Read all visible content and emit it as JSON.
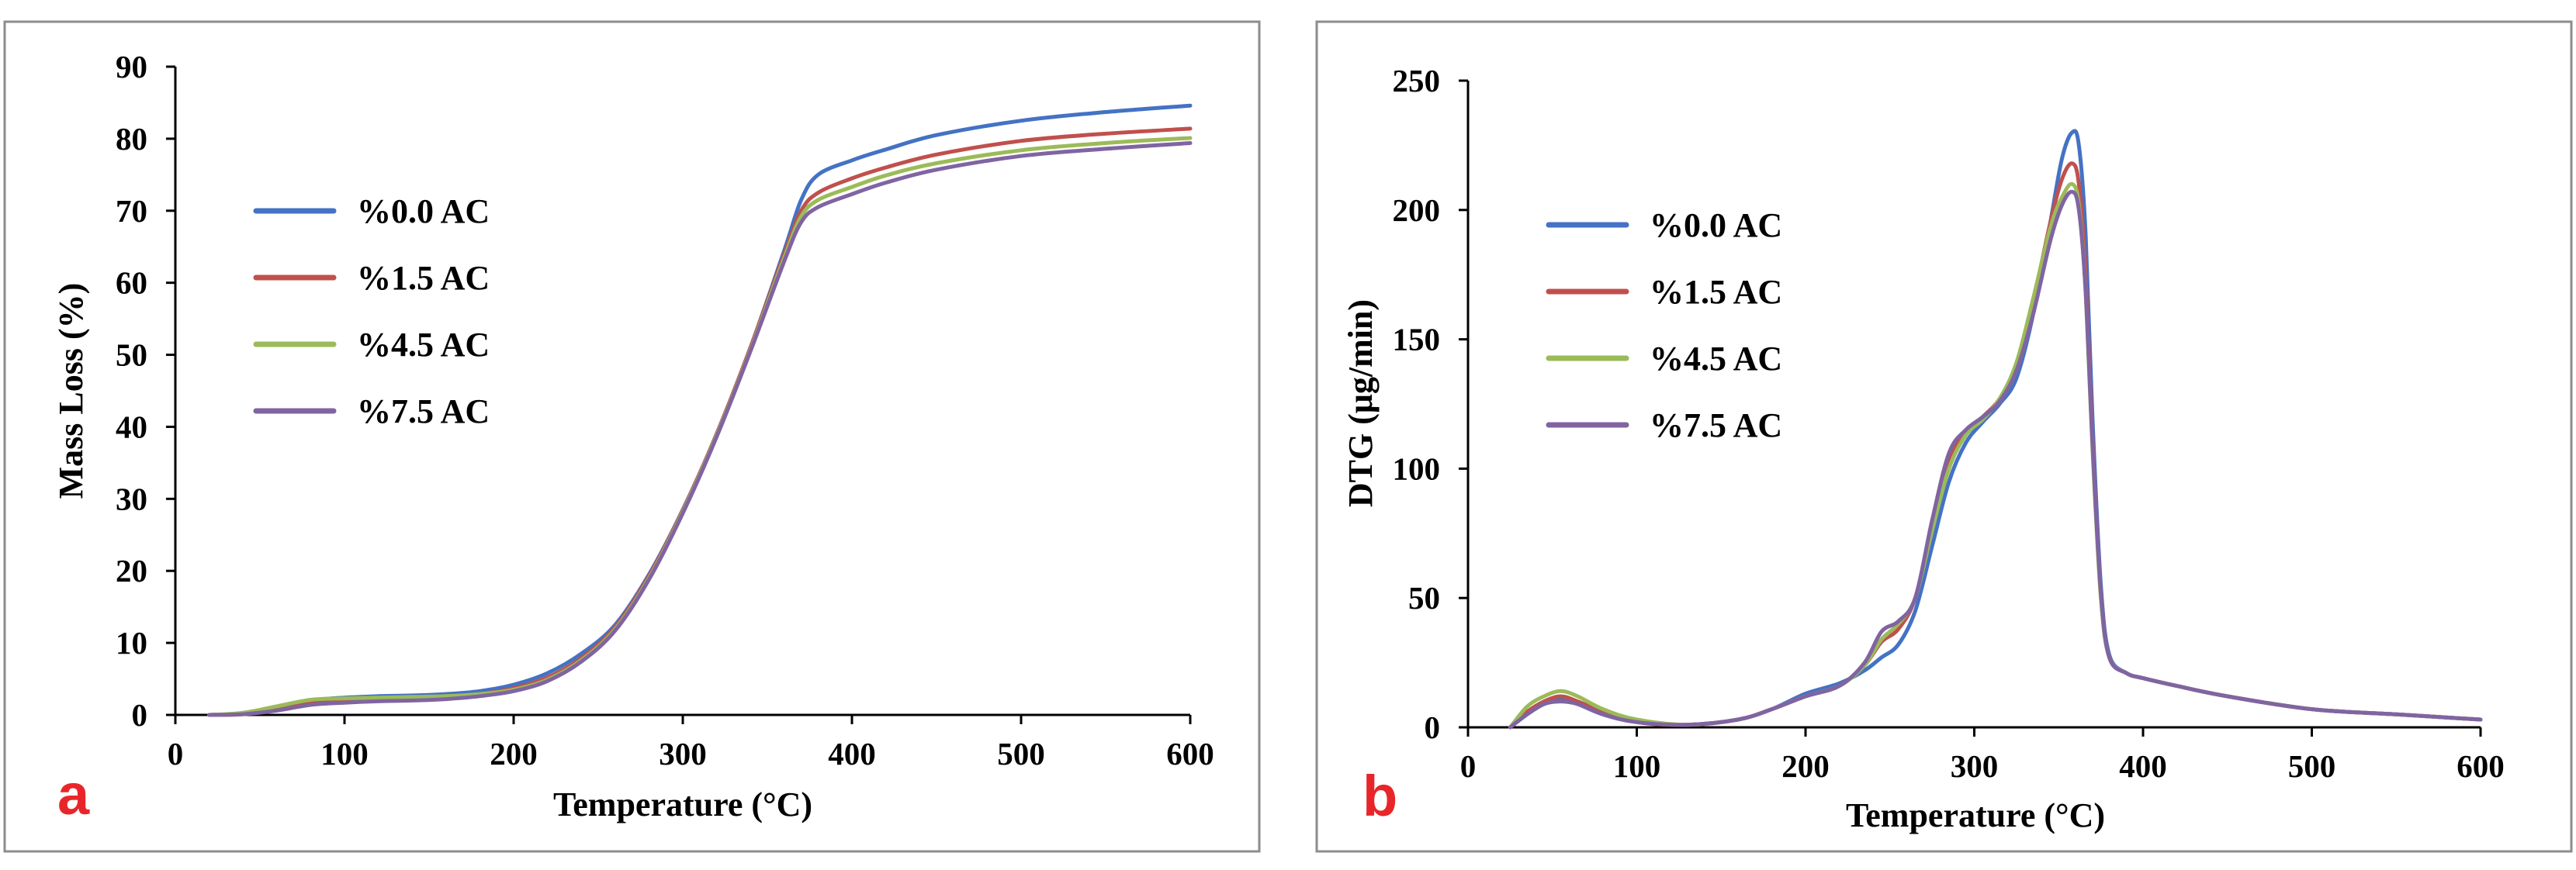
{
  "panel_labels": [
    "a",
    "b"
  ],
  "colors": {
    "label": "#e8262a",
    "frame": "#8c8c8c",
    "axis": "#000000"
  },
  "chart_data": [
    {
      "type": "line",
      "panel": "a",
      "title": "",
      "xlabel": "Temperature (°C)",
      "ylabel": "Mass Loss (%)",
      "xlim": [
        0,
        600
      ],
      "ylim": [
        0,
        90
      ],
      "xticks": [
        0,
        100,
        200,
        300,
        400,
        500,
        600
      ],
      "yticks": [
        0,
        10,
        20,
        30,
        40,
        50,
        60,
        70,
        80,
        90
      ],
      "grid": false,
      "legend_position": "upper-left",
      "series": [
        {
          "name": "%0.0 AC",
          "color": "#4472c4",
          "x": [
            20,
            40,
            60,
            80,
            100,
            120,
            140,
            160,
            180,
            200,
            220,
            240,
            260,
            280,
            300,
            320,
            340,
            360,
            370,
            380,
            400,
            420,
            450,
            500,
            550,
            600
          ],
          "y": [
            0,
            0.2,
            1.0,
            2.0,
            2.4,
            2.6,
            2.7,
            2.9,
            3.3,
            4.2,
            5.8,
            8.5,
            12.5,
            19.5,
            28.5,
            39.0,
            51.0,
            64.5,
            71.5,
            75.0,
            77.0,
            78.5,
            80.5,
            82.5,
            83.7,
            84.6
          ]
        },
        {
          "name": "%1.5 AC",
          "color": "#c0504d",
          "x": [
            20,
            40,
            60,
            80,
            100,
            120,
            140,
            160,
            180,
            200,
            220,
            240,
            260,
            280,
            300,
            320,
            340,
            360,
            370,
            380,
            400,
            420,
            450,
            500,
            550,
            600
          ],
          "y": [
            0,
            0.1,
            0.7,
            1.6,
            2.0,
            2.2,
            2.3,
            2.5,
            2.9,
            3.7,
            5.2,
            7.9,
            12.2,
            19.3,
            28.4,
            39.0,
            51.0,
            64.0,
            70.0,
            72.5,
            74.5,
            76.0,
            77.8,
            79.7,
            80.7,
            81.4
          ]
        },
        {
          "name": "%4.5 AC",
          "color": "#9bbb59",
          "x": [
            20,
            40,
            60,
            80,
            100,
            120,
            140,
            160,
            180,
            200,
            220,
            240,
            260,
            280,
            300,
            320,
            340,
            360,
            370,
            380,
            400,
            420,
            450,
            500,
            550,
            600
          ],
          "y": [
            0,
            0.3,
            1.2,
            2.1,
            2.3,
            2.4,
            2.5,
            2.6,
            2.9,
            3.5,
            4.9,
            7.6,
            11.9,
            19.0,
            28.2,
            38.8,
            50.7,
            63.5,
            69.2,
            71.5,
            73.3,
            74.9,
            76.6,
            78.4,
            79.4,
            80.1
          ]
        },
        {
          "name": "%7.5 AC",
          "color": "#8064a2",
          "x": [
            20,
            40,
            60,
            80,
            100,
            120,
            140,
            160,
            180,
            200,
            220,
            240,
            260,
            280,
            300,
            320,
            340,
            360,
            370,
            380,
            400,
            420,
            450,
            500,
            550,
            600
          ],
          "y": [
            0,
            0.1,
            0.6,
            1.4,
            1.7,
            1.9,
            2.0,
            2.2,
            2.6,
            3.3,
            4.7,
            7.4,
            11.7,
            18.8,
            28.0,
            38.6,
            50.5,
            63.0,
            68.4,
            70.5,
            72.3,
            73.9,
            75.7,
            77.6,
            78.6,
            79.4
          ]
        }
      ]
    },
    {
      "type": "line",
      "panel": "b",
      "title": "",
      "xlabel": "Temperature (°C)",
      "ylabel": "DTG (μg/min)",
      "xlim": [
        0,
        600
      ],
      "ylim": [
        0,
        250
      ],
      "xticks": [
        0,
        100,
        200,
        300,
        400,
        500,
        600
      ],
      "yticks": [
        0,
        50,
        100,
        150,
        200,
        250
      ],
      "grid": false,
      "legend_position": "upper-left",
      "series": [
        {
          "name": "%0.0 AC",
          "color": "#4472c4",
          "x": [
            25,
            35,
            45,
            55,
            65,
            80,
            100,
            130,
            160,
            180,
            200,
            220,
            235,
            245,
            255,
            265,
            275,
            285,
            295,
            305,
            315,
            325,
            335,
            345,
            352,
            358,
            362,
            366,
            370,
            375,
            380,
            390,
            400,
            420,
            450,
            500,
            550,
            600
          ],
          "y": [
            0,
            5,
            9,
            11,
            9,
            5,
            2,
            1,
            3,
            7,
            13,
            17,
            22,
            27,
            32,
            45,
            70,
            95,
            110,
            118,
            125,
            135,
            160,
            195,
            220,
            230,
            225,
            190,
            120,
            55,
            28,
            21,
            19,
            16,
            12,
            7,
            5,
            3
          ]
        },
        {
          "name": "%1.5 AC",
          "color": "#c0504d",
          "x": [
            25,
            35,
            45,
            55,
            65,
            80,
            100,
            130,
            160,
            180,
            200,
            220,
            235,
            245,
            255,
            265,
            275,
            285,
            295,
            305,
            315,
            325,
            335,
            345,
            352,
            358,
            362,
            366,
            370,
            375,
            380,
            390,
            400,
            420,
            450,
            500,
            550,
            600
          ],
          "y": [
            0,
            6,
            10,
            12,
            10,
            6,
            2,
            1,
            3,
            7,
            12,
            16,
            24,
            33,
            38,
            50,
            78,
            103,
            114,
            120,
            127,
            140,
            165,
            195,
            212,
            218,
            210,
            175,
            112,
            52,
            27,
            21,
            19,
            16,
            12,
            7,
            5,
            3
          ]
        },
        {
          "name": "%4.5 AC",
          "color": "#9bbb59",
          "x": [
            25,
            35,
            45,
            55,
            65,
            80,
            100,
            130,
            160,
            180,
            200,
            220,
            235,
            245,
            255,
            265,
            275,
            285,
            295,
            305,
            315,
            325,
            335,
            345,
            352,
            358,
            362,
            366,
            370,
            375,
            380,
            390,
            400,
            420,
            450,
            500,
            550,
            600
          ],
          "y": [
            0,
            8,
            12,
            14,
            12,
            7,
            3,
            1,
            3,
            7,
            12,
            16,
            24,
            34,
            40,
            50,
            76,
            100,
            113,
            119,
            127,
            141,
            166,
            193,
            205,
            210,
            202,
            168,
            108,
            50,
            27,
            21,
            19,
            16,
            12,
            7,
            5,
            3
          ]
        },
        {
          "name": "%7.5 AC",
          "color": "#8064a2",
          "x": [
            25,
            35,
            45,
            55,
            65,
            80,
            100,
            130,
            160,
            180,
            200,
            220,
            235,
            245,
            255,
            265,
            275,
            285,
            295,
            305,
            315,
            325,
            335,
            345,
            352,
            358,
            362,
            366,
            370,
            375,
            380,
            390,
            400,
            420,
            450,
            500,
            550,
            600
          ],
          "y": [
            0,
            5,
            9,
            10,
            9,
            5,
            2,
            1,
            3,
            7,
            12,
            16,
            25,
            37,
            41,
            50,
            80,
            106,
            115,
            120,
            126,
            138,
            160,
            188,
            202,
            207,
            200,
            168,
            110,
            52,
            27,
            21,
            19,
            16,
            12,
            7,
            5,
            3
          ]
        }
      ]
    }
  ]
}
